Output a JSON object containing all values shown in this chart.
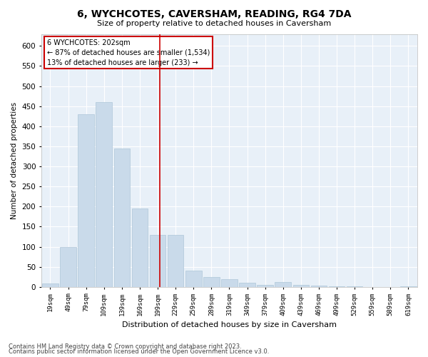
{
  "title": "6, WYCHCOTES, CAVERSHAM, READING, RG4 7DA",
  "subtitle": "Size of property relative to detached houses in Caversham",
  "xlabel": "Distribution of detached houses by size in Caversham",
  "ylabel": "Number of detached properties",
  "bar_color": "#c9daea",
  "bar_edge_color": "#aec6d8",
  "bg_color": "#e8f0f8",
  "grid_color": "#ffffff",
  "annotation_text_line1": "6 WYCHCOTES: 202sqm",
  "annotation_text_line2": "← 87% of detached houses are smaller (1,534)",
  "annotation_text_line3": "13% of detached houses are larger (233) →",
  "annotation_box_color": "#ffffff",
  "annotation_box_edge": "#cc0000",
  "vline_color": "#cc0000",
  "categories": [
    "19sqm",
    "49sqm",
    "79sqm",
    "109sqm",
    "139sqm",
    "169sqm",
    "199sqm",
    "229sqm",
    "259sqm",
    "289sqm",
    "319sqm",
    "349sqm",
    "379sqm",
    "409sqm",
    "439sqm",
    "469sqm",
    "499sqm",
    "529sqm",
    "559sqm",
    "589sqm",
    "619sqm"
  ],
  "values": [
    8,
    100,
    430,
    460,
    345,
    195,
    130,
    130,
    40,
    25,
    20,
    10,
    5,
    12,
    5,
    3,
    2,
    1,
    0,
    0,
    1
  ],
  "ylim": [
    0,
    630
  ],
  "yticks": [
    0,
    50,
    100,
    150,
    200,
    250,
    300,
    350,
    400,
    450,
    500,
    550,
    600
  ],
  "footnote1": "Contains HM Land Registry data © Crown copyright and database right 2023.",
  "footnote2": "Contains public sector information licensed under the Open Government Licence v3.0."
}
